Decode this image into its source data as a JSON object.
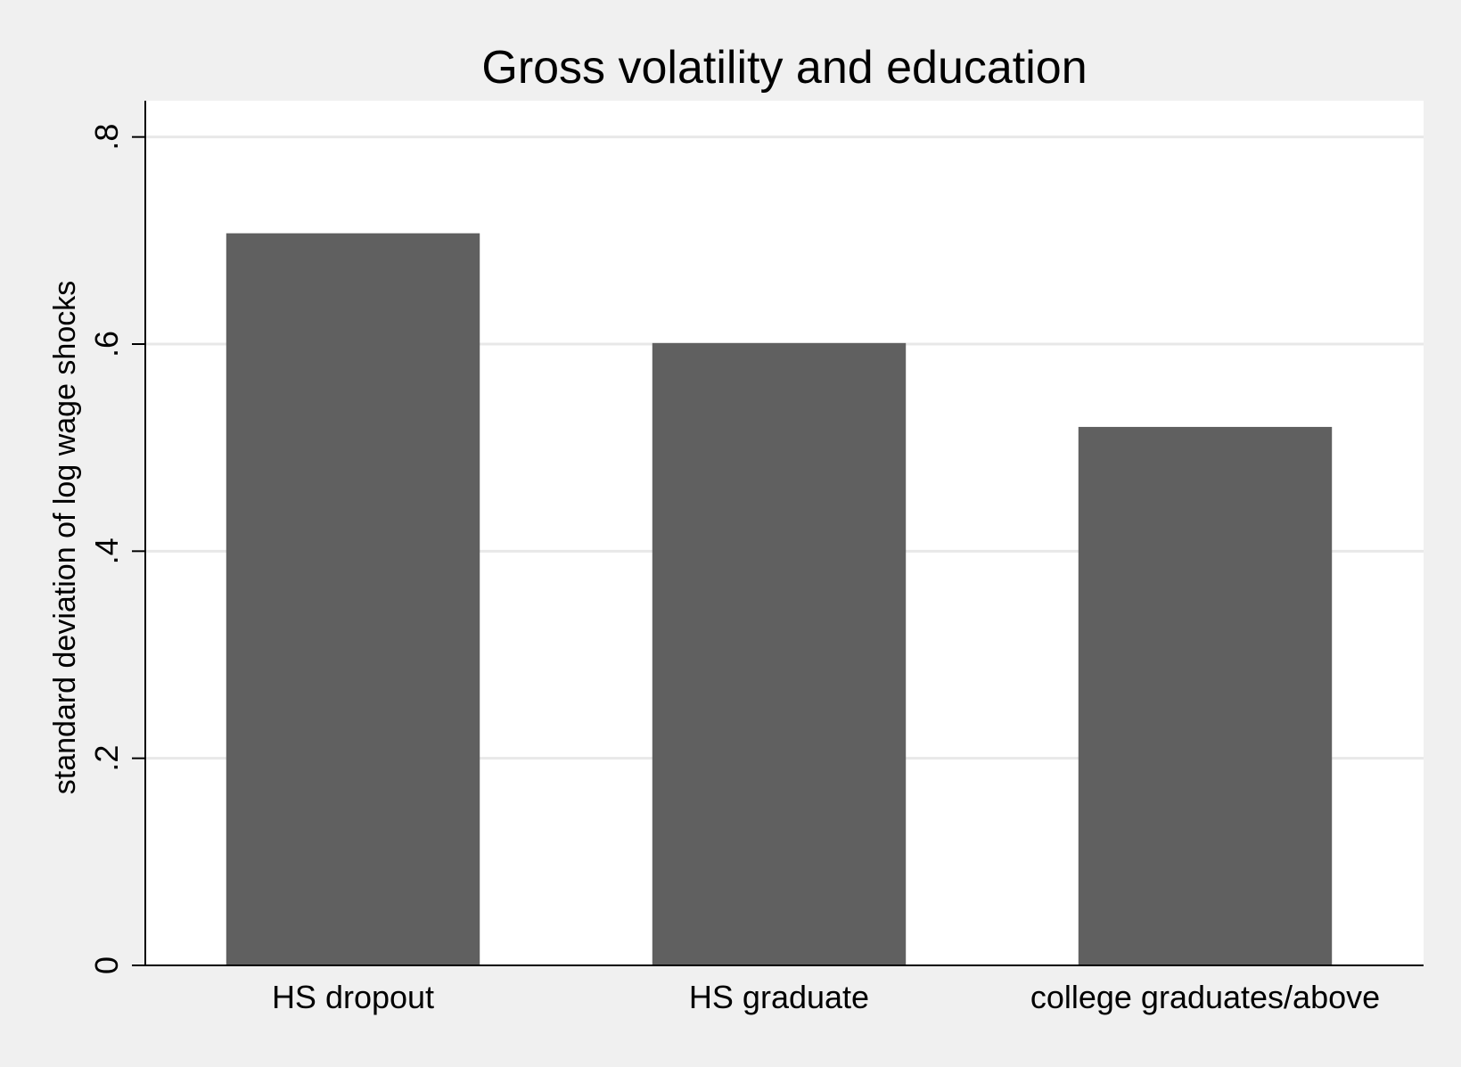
{
  "chart_data": {
    "type": "bar",
    "title": "Gross volatility and education",
    "xlabel": "",
    "ylabel": "standard deviation of log wage shocks",
    "categories": [
      "HS dropout",
      "HS graduate",
      "college graduates/above"
    ],
    "values": [
      0.707,
      0.601,
      0.52
    ],
    "ylim": [
      0,
      0.835
    ],
    "yticks": [
      0,
      0.2,
      0.4,
      0.6,
      0.8
    ],
    "ytick_labels": [
      "0",
      ".2",
      ".4",
      ".6",
      ".8"
    ],
    "grid": true,
    "legend": "none",
    "colors": {
      "bar": "#606060",
      "plot_background": "#ffffff",
      "page_background": "#f0f0f0",
      "gridline": "#e8e8e8",
      "axis": "#000000"
    }
  }
}
